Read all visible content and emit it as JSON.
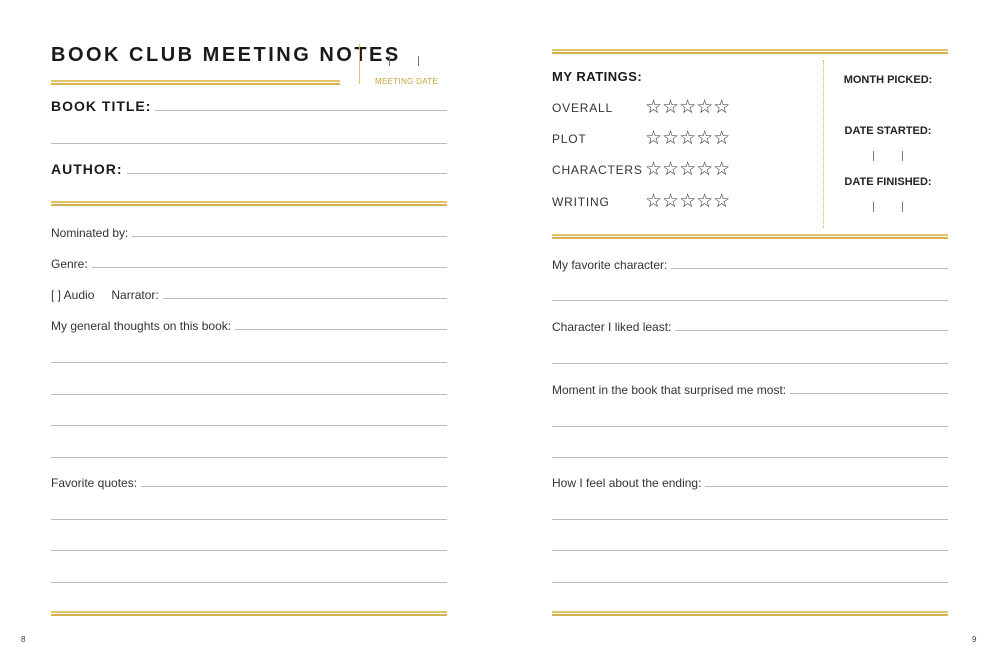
{
  "left": {
    "title": "BOOK CLUB MEETING NOTES",
    "meeting_date": "MEETING DATE",
    "book_title": "BOOK TITLE:",
    "author": "AUTHOR:",
    "nominated_by": "Nominated by:",
    "genre": "Genre:",
    "audio": "[  ] Audio",
    "narrator": "Narrator:",
    "thoughts": "My general thoughts on this book:",
    "quotes": "Favorite quotes:",
    "page_number": "8"
  },
  "right": {
    "ratings_title": "MY RATINGS:",
    "ratings": [
      {
        "label": "OVERALL",
        "stars": 0
      },
      {
        "label": "PLOT",
        "stars": 0
      },
      {
        "label": "CHARACTERS",
        "stars": 0
      },
      {
        "label": "WRITING",
        "stars": 0
      }
    ],
    "star_glyph": "☆☆☆☆☆",
    "month_picked": "MONTH PICKED:",
    "date_started": "DATE STARTED:",
    "date_finished": "DATE FINISHED:",
    "favorite_character": "My favorite character:",
    "least_character": "Character I liked least:",
    "surprise": "Moment in the book that surprised me most:",
    "ending": "How I feel about the ending:",
    "page_number": "9"
  },
  "colors": {
    "gold": "#d7b24f",
    "gold_text": "#c9a33a",
    "rule": "#bdbdbd"
  }
}
